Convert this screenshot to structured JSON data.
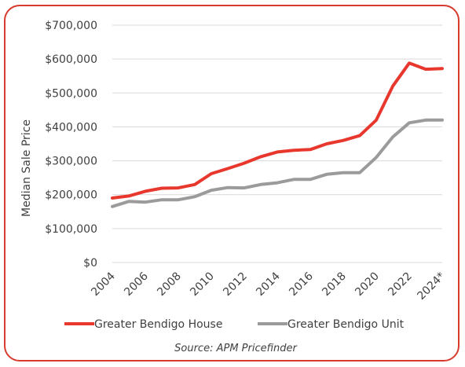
{
  "chart_data": {
    "type": "line",
    "title": "",
    "xlabel": "",
    "ylabel": "Median Sale Price",
    "source": "Source: APM Pricefinder",
    "x": [
      "2004",
      "2005",
      "2006",
      "2007",
      "2008",
      "2009",
      "2010",
      "2011",
      "2012",
      "2013",
      "2014",
      "2015",
      "2016",
      "2017",
      "2018",
      "2019",
      "2020",
      "2021",
      "2022",
      "2023",
      "2024*"
    ],
    "x_tick_labels": [
      "2004",
      "2006",
      "2008",
      "2010",
      "2012",
      "2014",
      "2016",
      "2018",
      "2020",
      "2022",
      "2024*"
    ],
    "y_tick_labels": [
      "$0",
      "$100,000",
      "$200,000",
      "$300,000",
      "$400,000",
      "$500,000",
      "$600,000",
      "$700,000"
    ],
    "ylim": [
      0,
      700000
    ],
    "grid": "horizontal",
    "legend": "bottom",
    "series": [
      {
        "name": "Greater Bendigo House",
        "color": "#e8382e",
        "values": [
          190000,
          196000,
          210000,
          219000,
          220000,
          230000,
          262000,
          277000,
          293000,
          312000,
          326000,
          331000,
          333000,
          350000,
          360000,
          374000,
          420000,
          520000,
          588000,
          570000,
          572000
        ]
      },
      {
        "name": "Greater Bendigo Unit",
        "color": "#9b9b9b",
        "values": [
          165000,
          180000,
          178000,
          185000,
          185000,
          194000,
          213000,
          221000,
          220000,
          230000,
          235000,
          245000,
          245000,
          260000,
          265000,
          265000,
          310000,
          370000,
          412000,
          420000,
          420000
        ]
      }
    ]
  }
}
